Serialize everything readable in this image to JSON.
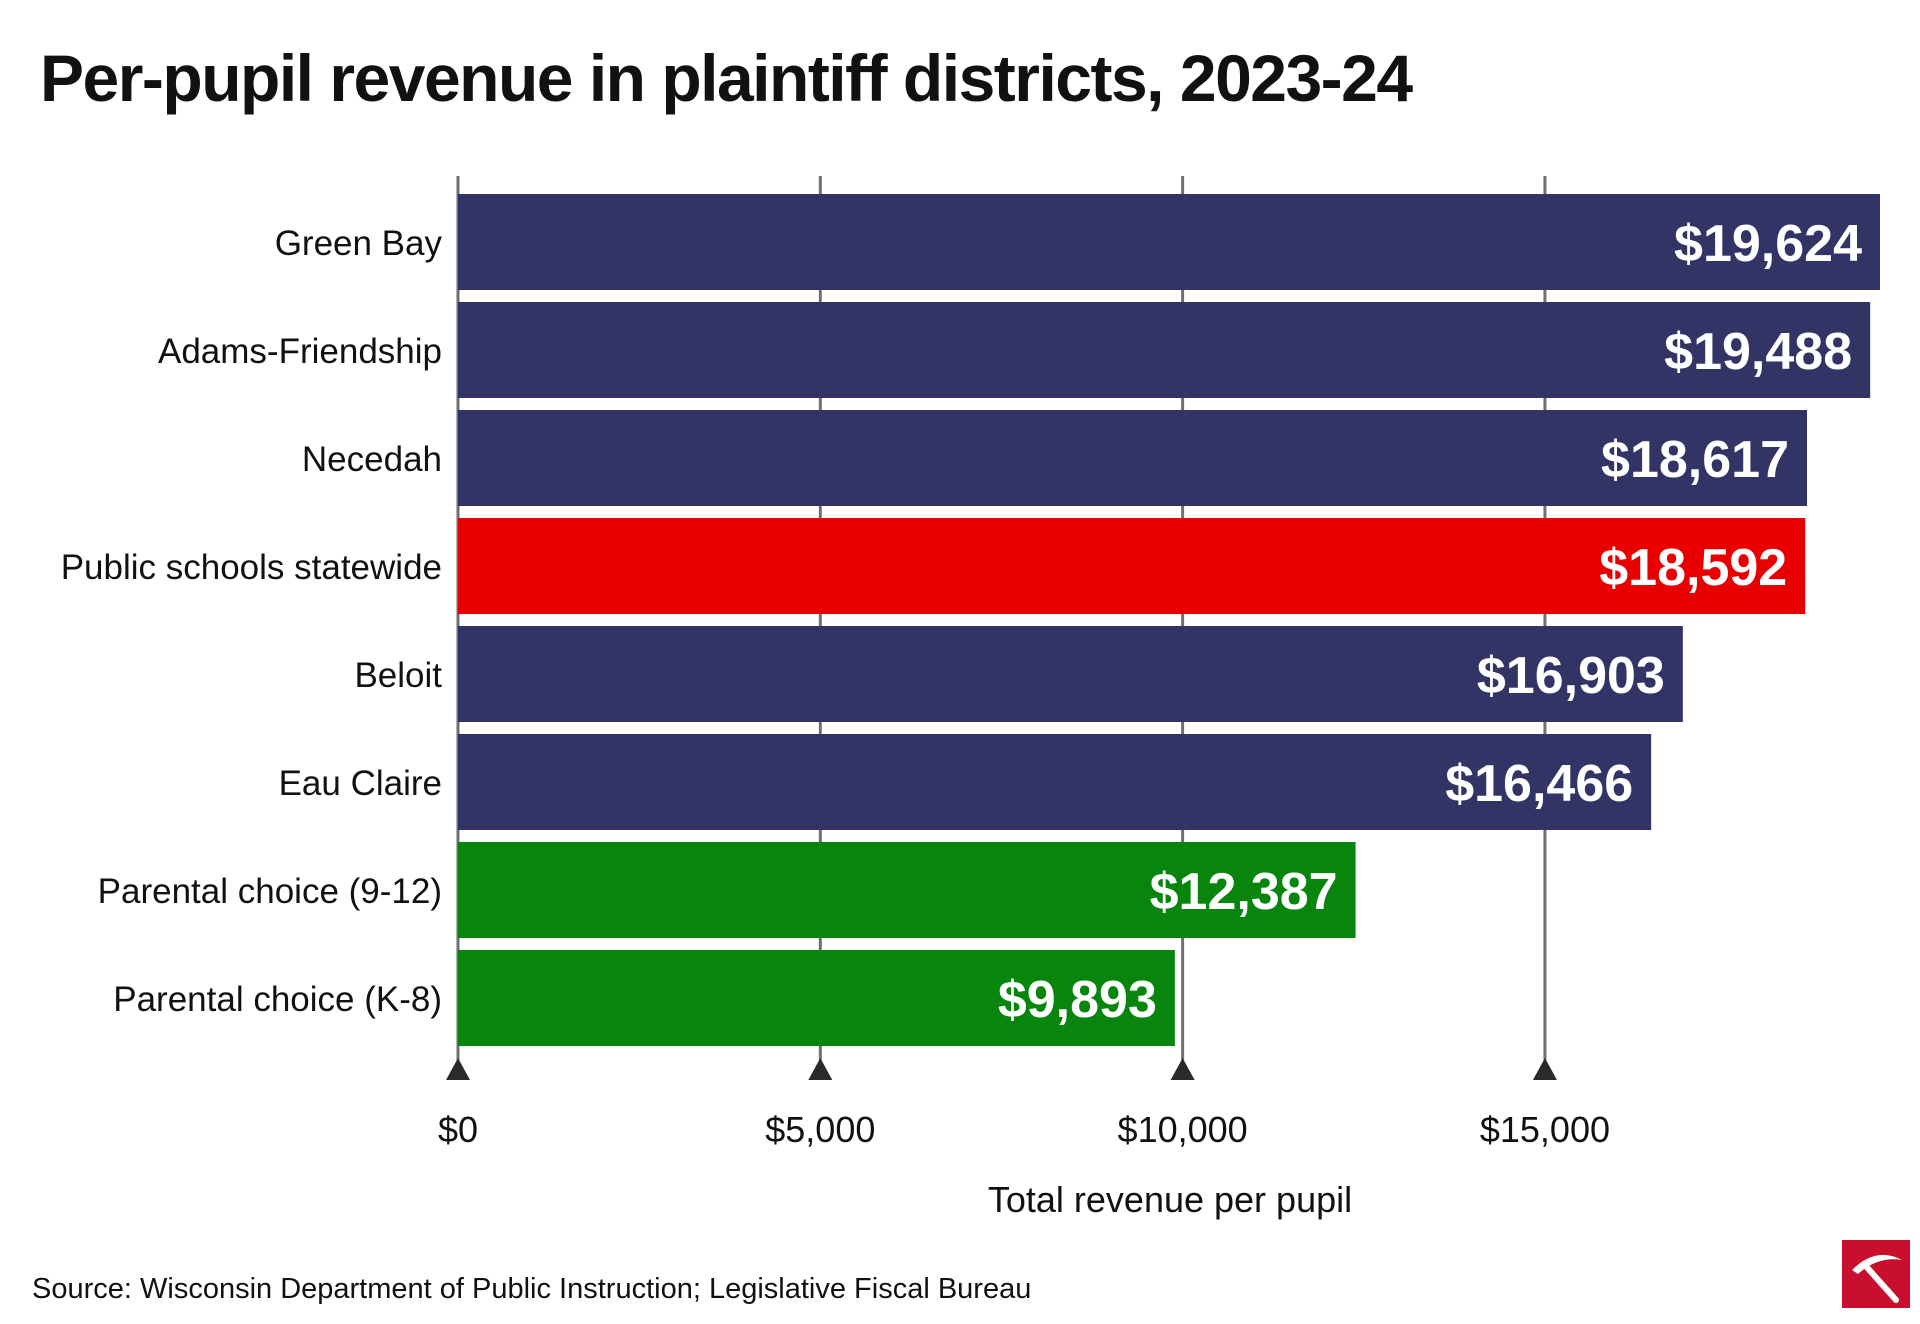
{
  "title": "Per-pupil revenue in plaintiff districts, 2023-24",
  "source": "Source: Wisconsin Department of Public Instruction; Legislative Fiscal Bureau",
  "colors": {
    "district": "#323465",
    "statewide": "#e80000",
    "choice": "#07850d",
    "value_label": "#ffffff",
    "grid": "#6f6f6f",
    "axis_marker": "#2a2a2a",
    "logo_red": "#c8102e"
  },
  "logo_icon": "pickaxe-logo-icon",
  "chart_data": {
    "type": "bar",
    "orientation": "horizontal",
    "categories": [
      "Green Bay",
      "Adams-Friendship",
      "Necedah",
      "Public schools statewide",
      "Beloit",
      "Eau Claire",
      "Parental choice (9-12)",
      "Parental choice (K-8)"
    ],
    "values": [
      19624,
      19488,
      18617,
      18592,
      16903,
      16466,
      12387,
      9893
    ],
    "value_labels": [
      "$19,624",
      "$19,488",
      "$18,617",
      "$18,592",
      "$16,903",
      "$16,466",
      "$12,387",
      "$9,893"
    ],
    "bar_groups": [
      "district",
      "district",
      "district",
      "statewide",
      "district",
      "district",
      "choice",
      "choice"
    ],
    "xlabel": "Total revenue per pupil",
    "xlim": [
      0,
      19624
    ],
    "xticks": [
      0,
      5000,
      10000,
      15000
    ],
    "xtick_labels": [
      "$0",
      "$5,000",
      "$10,000",
      "$15,000"
    ],
    "grid": true,
    "legend": false
  }
}
